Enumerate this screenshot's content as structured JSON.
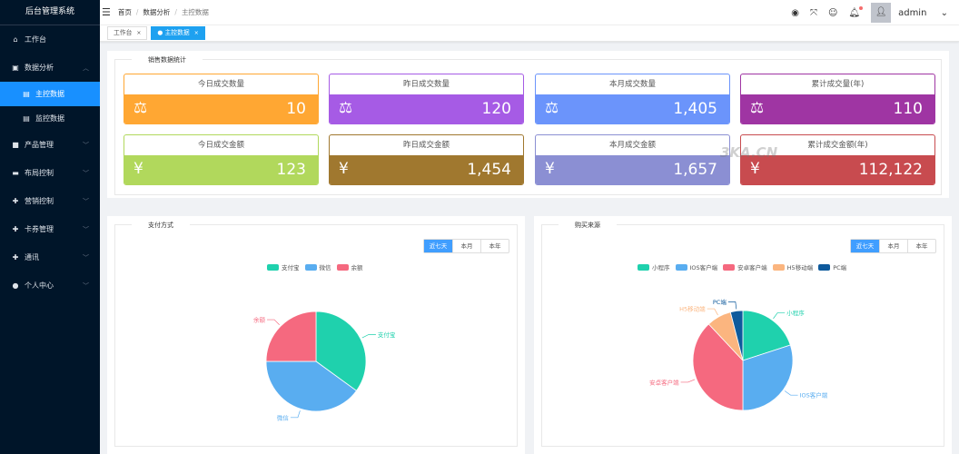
{
  "app_title": "后台管理系统",
  "sidebar": {
    "items": [
      {
        "label": "工作台",
        "icon": "home-icon"
      },
      {
        "label": "数据分析",
        "icon": "chart-icon",
        "expanded": true,
        "children": [
          {
            "label": "主控数据",
            "active": true
          },
          {
            "label": "监控数据"
          }
        ]
      },
      {
        "label": "产品管理",
        "icon": "bag-icon"
      },
      {
        "label": "布局控制",
        "icon": "monitor-icon"
      },
      {
        "label": "营销控制",
        "icon": "circle-plus-icon"
      },
      {
        "label": "卡券管理",
        "icon": "circle-plus-icon"
      },
      {
        "label": "通讯",
        "icon": "circle-plus-icon"
      },
      {
        "label": "个人中心",
        "icon": "user-icon"
      }
    ]
  },
  "header": {
    "breadcrumb": [
      "首页",
      "数据分析",
      "主控数据"
    ],
    "user": "admin"
  },
  "tabs": [
    {
      "label": "工作台"
    },
    {
      "label": "主控数据",
      "active": true
    }
  ],
  "sales": {
    "title": "销售数据统计",
    "cards": [
      {
        "label": "今日成交数量",
        "value": "10",
        "color": "#ffa733",
        "icon": "gavel-icon"
      },
      {
        "label": "昨日成交数量",
        "value": "120",
        "color": "#a65be5",
        "icon": "gavel-icon"
      },
      {
        "label": "本月成交数量",
        "value": "1,405",
        "color": "#6b94fb",
        "icon": "gavel-icon"
      },
      {
        "label": "累计成交量(年)",
        "value": "110",
        "color": "#9f35a3",
        "icon": "gavel-icon"
      },
      {
        "label": "今日成交金额",
        "value": "123",
        "color": "#b1d85c",
        "icon": "yen-icon"
      },
      {
        "label": "昨日成交金额",
        "value": "1,454",
        "color": "#a0782f",
        "icon": "yen-icon"
      },
      {
        "label": "本月成交金额",
        "value": "1,657",
        "color": "#8b8fd3",
        "icon": "yen-icon"
      },
      {
        "label": "累计成交金额(年)",
        "value": "112,122",
        "color": "#c84b4f",
        "icon": "yen-icon"
      }
    ]
  },
  "range_buttons": [
    "近七天",
    "本月",
    "本年"
  ],
  "watermark": "3KA.CN",
  "chart_data": [
    {
      "type": "pie",
      "title": "支付方式",
      "categories": [
        "支付宝",
        "微信",
        "余额"
      ],
      "values": [
        35,
        40,
        25
      ],
      "colors": [
        "#1fd1ad",
        "#59adf0",
        "#f5697f"
      ],
      "legend": "top"
    },
    {
      "type": "pie",
      "title": "购买来源",
      "categories": [
        "小程序",
        "IOS客户端",
        "安卓客户端",
        "H5移动端",
        "PC端"
      ],
      "values": [
        20,
        30,
        38,
        8,
        4
      ],
      "colors": [
        "#1fd1ad",
        "#59adf0",
        "#f5697f",
        "#fbb57f",
        "#0e5a9c"
      ],
      "legend": "top"
    }
  ]
}
